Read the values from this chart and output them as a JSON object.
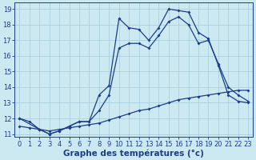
{
  "xlabel": "Graphe des températures (°c)",
  "background_color": "#cce8f0",
  "line_color": "#1c3d8c",
  "grid_color": "#aacfdc",
  "xlim": [
    -0.5,
    23.5
  ],
  "ylim": [
    10.8,
    19.4
  ],
  "yticks": [
    11,
    12,
    13,
    14,
    15,
    16,
    17,
    18,
    19
  ],
  "xticks": [
    0,
    1,
    2,
    3,
    4,
    5,
    6,
    7,
    8,
    9,
    10,
    11,
    12,
    13,
    14,
    15,
    16,
    17,
    18,
    19,
    20,
    21,
    22,
    23
  ],
  "series1_x": [
    0,
    1,
    2,
    3,
    4,
    5,
    6,
    7,
    8,
    9,
    10,
    11,
    12,
    13,
    14,
    15,
    16,
    17,
    18,
    19,
    20,
    21,
    22,
    23
  ],
  "series1_y": [
    12.0,
    11.8,
    11.3,
    11.0,
    11.2,
    11.5,
    11.8,
    11.8,
    13.5,
    14.1,
    18.4,
    17.8,
    17.7,
    17.0,
    17.8,
    19.0,
    18.9,
    18.8,
    17.5,
    17.1,
    15.4,
    13.5,
    13.1,
    13.0
  ],
  "series2_x": [
    0,
    2,
    3,
    4,
    5,
    6,
    7,
    8,
    9,
    10,
    11,
    12,
    13,
    14,
    15,
    16,
    17,
    18,
    19,
    20,
    21,
    22,
    23
  ],
  "series2_y": [
    12.0,
    11.3,
    11.0,
    11.2,
    11.5,
    11.8,
    11.8,
    12.5,
    13.5,
    16.5,
    16.8,
    16.8,
    16.5,
    17.3,
    18.2,
    18.5,
    18.0,
    16.8,
    17.0,
    15.5,
    14.0,
    13.5,
    13.1
  ],
  "series3_x": [
    0,
    1,
    2,
    3,
    4,
    5,
    6,
    7,
    8,
    9,
    10,
    11,
    12,
    13,
    14,
    15,
    16,
    17,
    18,
    19,
    20,
    21,
    22,
    23
  ],
  "series3_y": [
    11.5,
    11.4,
    11.3,
    11.2,
    11.3,
    11.4,
    11.5,
    11.6,
    11.7,
    11.9,
    12.1,
    12.3,
    12.5,
    12.6,
    12.8,
    13.0,
    13.2,
    13.3,
    13.4,
    13.5,
    13.6,
    13.7,
    13.8,
    13.8
  ],
  "xlabel_fontsize": 7.5,
  "tick_fontsize": 6.0,
  "marker_size": 2.0,
  "line_width": 0.9
}
